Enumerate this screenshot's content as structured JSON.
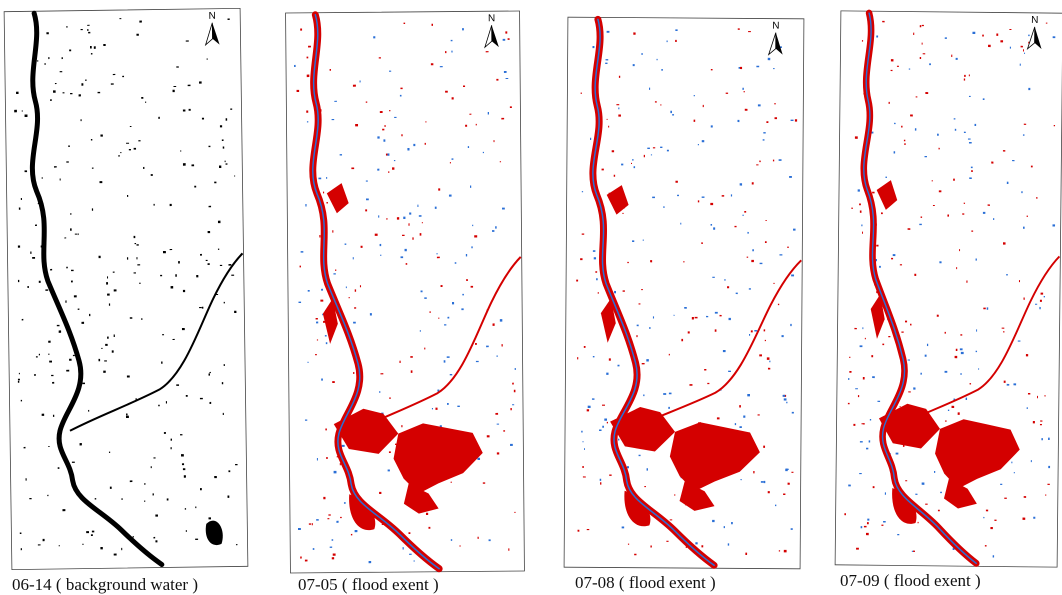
{
  "panels": [
    {
      "caption": "06-14 ( background water )",
      "north": "N"
    },
    {
      "caption": "07-05 ( flood exent )",
      "north": "N"
    },
    {
      "caption": "07-08 ( flood exent )",
      "north": "N"
    },
    {
      "caption": "07-09 ( flood exent )",
      "north": "N"
    }
  ]
}
